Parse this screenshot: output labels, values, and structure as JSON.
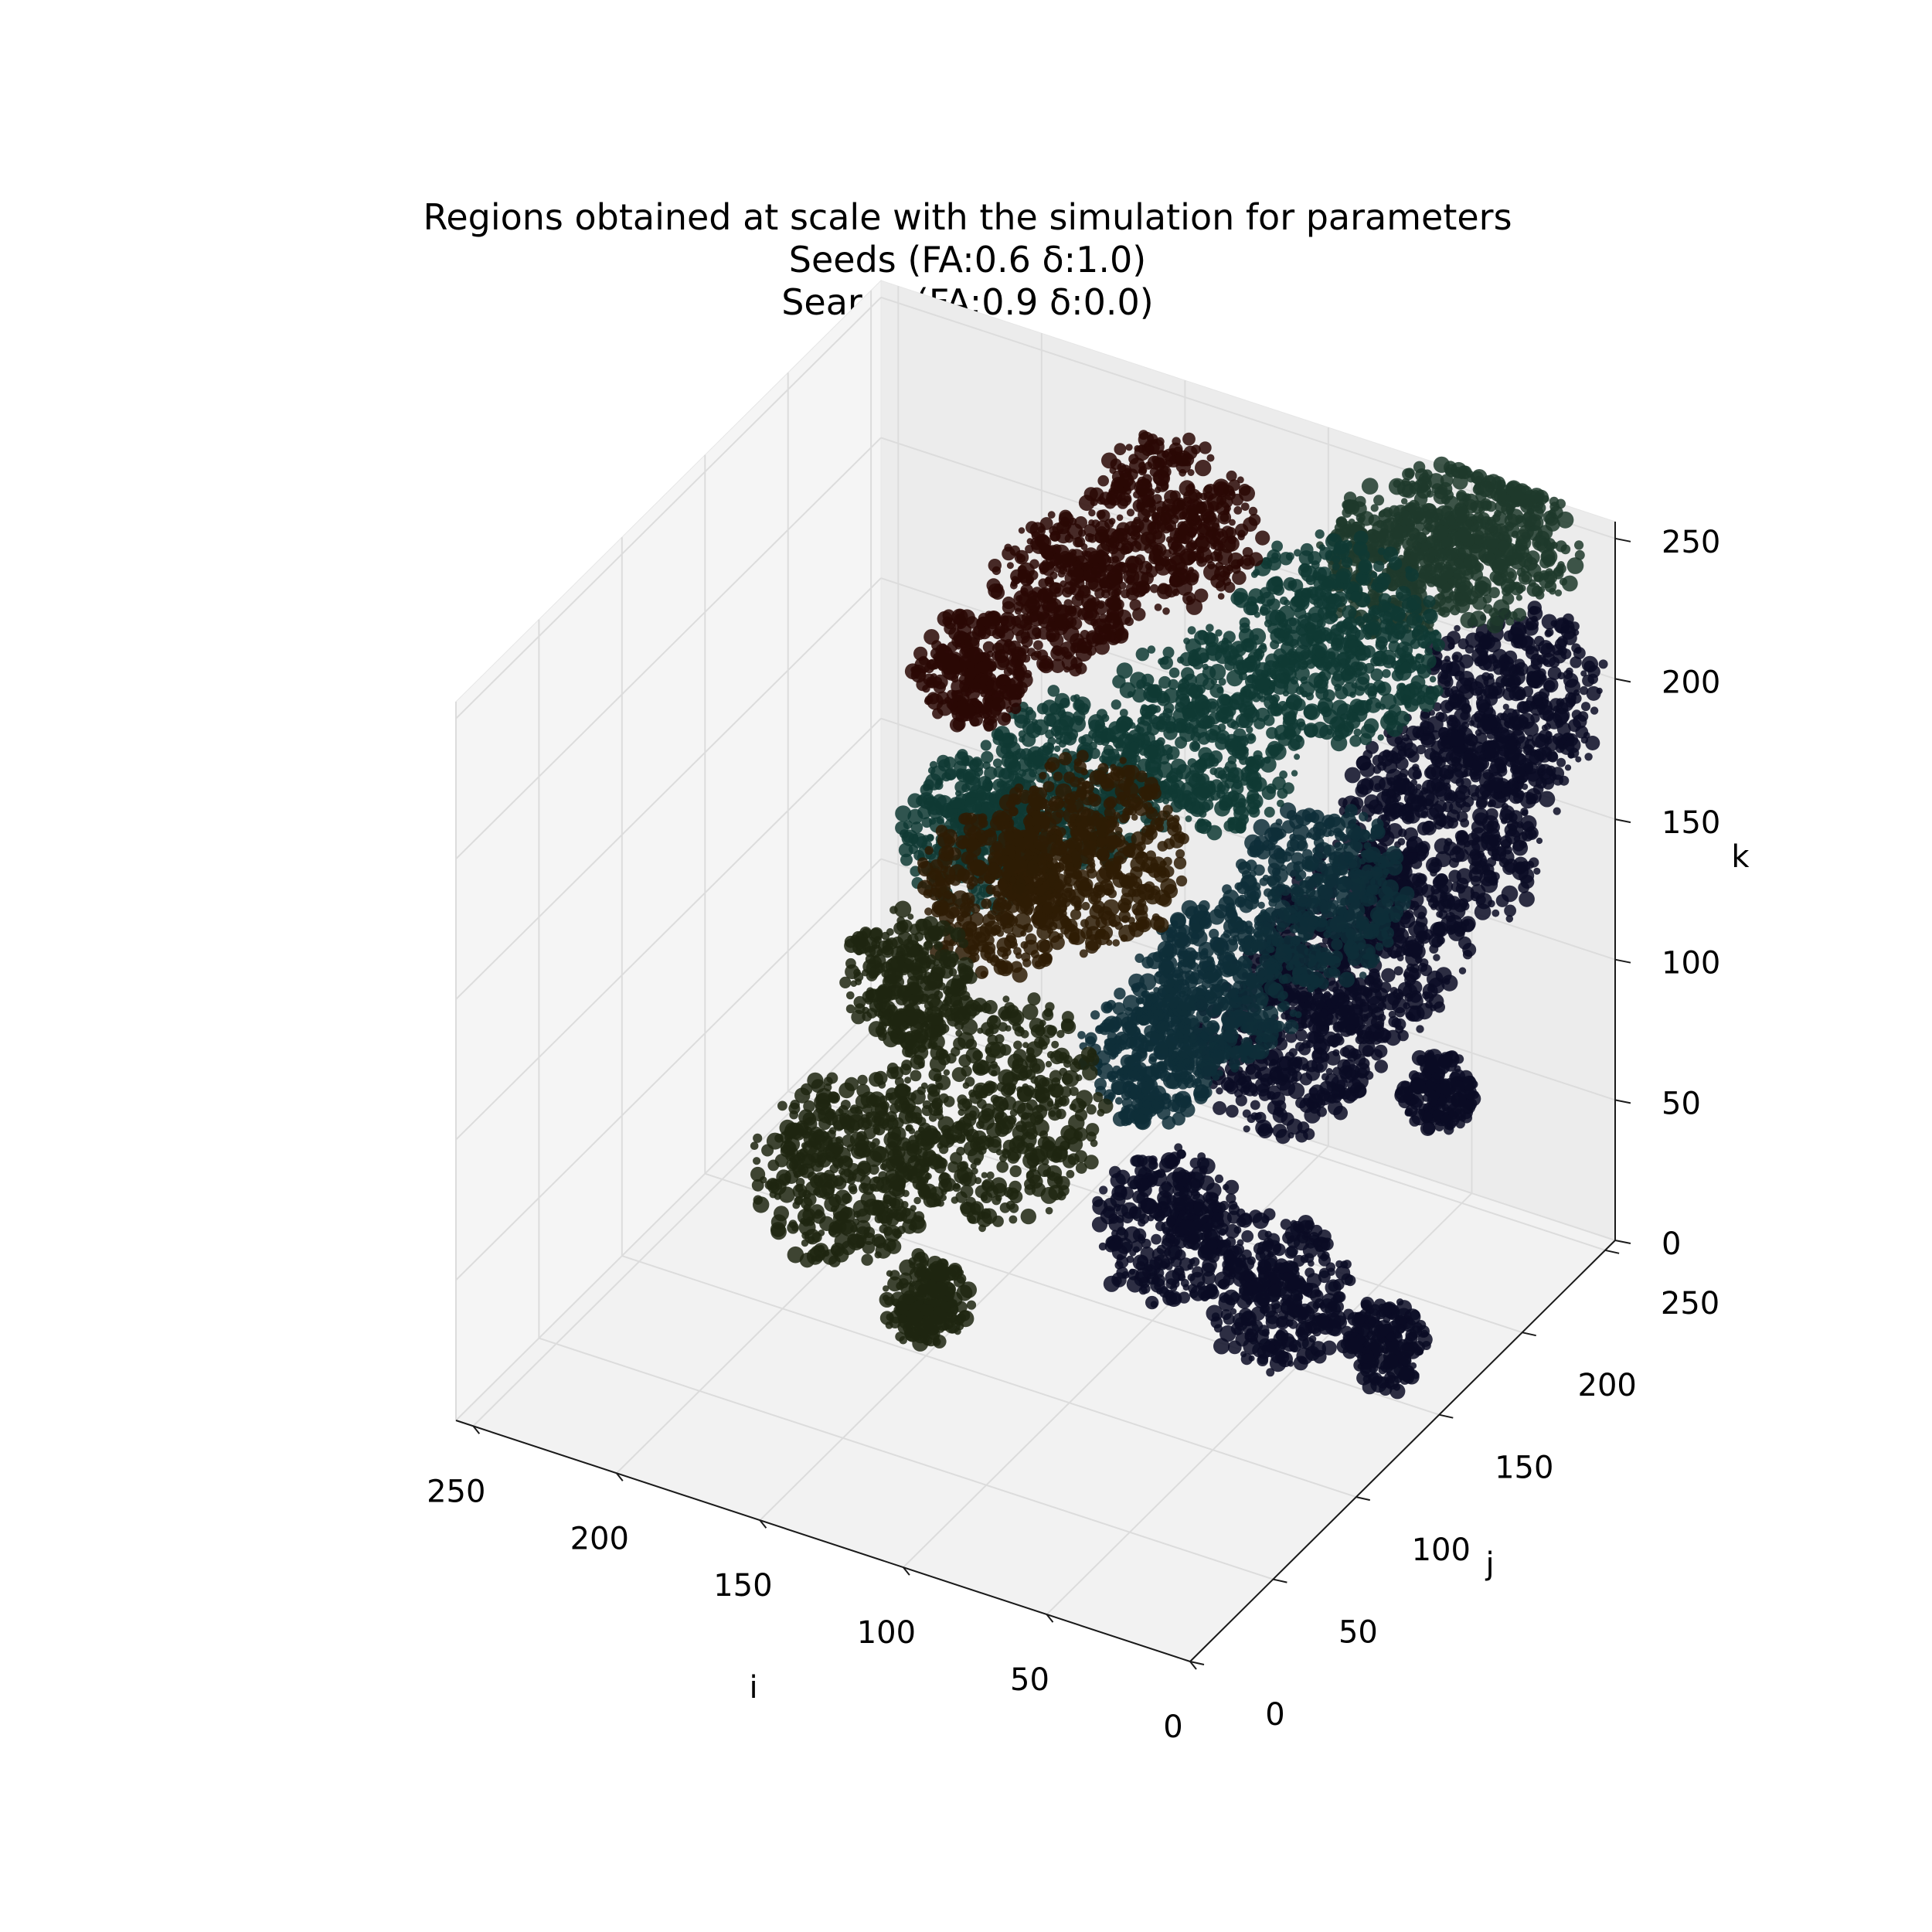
{
  "chart_data": {
    "type": "scatter",
    "projection": "3d",
    "title_lines": [
      "Regions obtained at scale with the simulation for parameters",
      "Seeds (FA:0.6 δ:1.0)",
      "Search (FA:0.9 δ:0.0)"
    ],
    "xlabel": "i",
    "ylabel": "j",
    "zlabel": "k",
    "xlim": [
      0,
      256
    ],
    "ylim": [
      0,
      256
    ],
    "zlim": [
      0,
      256
    ],
    "xticks": [
      "0",
      "50",
      "100",
      "150",
      "200",
      "250"
    ],
    "yticks": [
      "0",
      "50",
      "100",
      "150",
      "200",
      "250"
    ],
    "zticks": [
      "0",
      "50",
      "100",
      "150",
      "200",
      "250"
    ],
    "grid": true,
    "series": [
      {
        "color": "#0a0c24",
        "blobs": [
          {
            "x": 20,
            "y": 230,
            "z": 200,
            "r": 30
          },
          {
            "x": 35,
            "y": 215,
            "z": 160,
            "r": 34
          },
          {
            "x": 55,
            "y": 200,
            "z": 120,
            "r": 32
          },
          {
            "x": 75,
            "y": 190,
            "z": 85,
            "r": 30
          },
          {
            "x": 15,
            "y": 175,
            "z": 95,
            "r": 12
          },
          {
            "x": 45,
            "y": 130,
            "z": 40,
            "r": 24
          },
          {
            "x": 10,
            "y": 135,
            "z": 30,
            "r": 14
          },
          {
            "x": 95,
            "y": 150,
            "z": 35,
            "r": 24
          }
        ]
      },
      {
        "color": "#0e2e38",
        "blobs": [
          {
            "x": 80,
            "y": 215,
            "z": 120,
            "r": 28
          },
          {
            "x": 100,
            "y": 190,
            "z": 95,
            "r": 26
          },
          {
            "x": 115,
            "y": 175,
            "z": 75,
            "r": 22
          }
        ]
      },
      {
        "color": "#1e3a2c",
        "blobs": [
          {
            "x": 40,
            "y": 250,
            "z": 245,
            "r": 30
          },
          {
            "x": 70,
            "y": 245,
            "z": 225,
            "r": 24
          }
        ]
      },
      {
        "color": "#0f3a34",
        "blobs": [
          {
            "x": 90,
            "y": 245,
            "z": 190,
            "r": 34
          },
          {
            "x": 130,
            "y": 235,
            "z": 150,
            "r": 32
          },
          {
            "x": 175,
            "y": 230,
            "z": 120,
            "r": 28
          },
          {
            "x": 205,
            "y": 225,
            "z": 95,
            "r": 24
          }
        ]
      },
      {
        "color": "#2a0805",
        "blobs": [
          {
            "x": 150,
            "y": 250,
            "z": 210,
            "r": 28
          },
          {
            "x": 185,
            "y": 245,
            "z": 175,
            "r": 24
          },
          {
            "x": 215,
            "y": 240,
            "z": 140,
            "r": 18
          }
        ]
      },
      {
        "color": "#2e1c05",
        "blobs": [
          {
            "x": 150,
            "y": 200,
            "z": 120,
            "r": 30
          },
          {
            "x": 180,
            "y": 195,
            "z": 100,
            "r": 26
          }
        ]
      },
      {
        "color": "#1e2610",
        "blobs": [
          {
            "x": 165,
            "y": 165,
            "z": 45,
            "r": 36
          },
          {
            "x": 200,
            "y": 140,
            "z": 25,
            "r": 30
          },
          {
            "x": 215,
            "y": 200,
            "z": 55,
            "r": 20
          },
          {
            "x": 150,
            "y": 100,
            "z": 20,
            "r": 14
          }
        ]
      }
    ]
  }
}
